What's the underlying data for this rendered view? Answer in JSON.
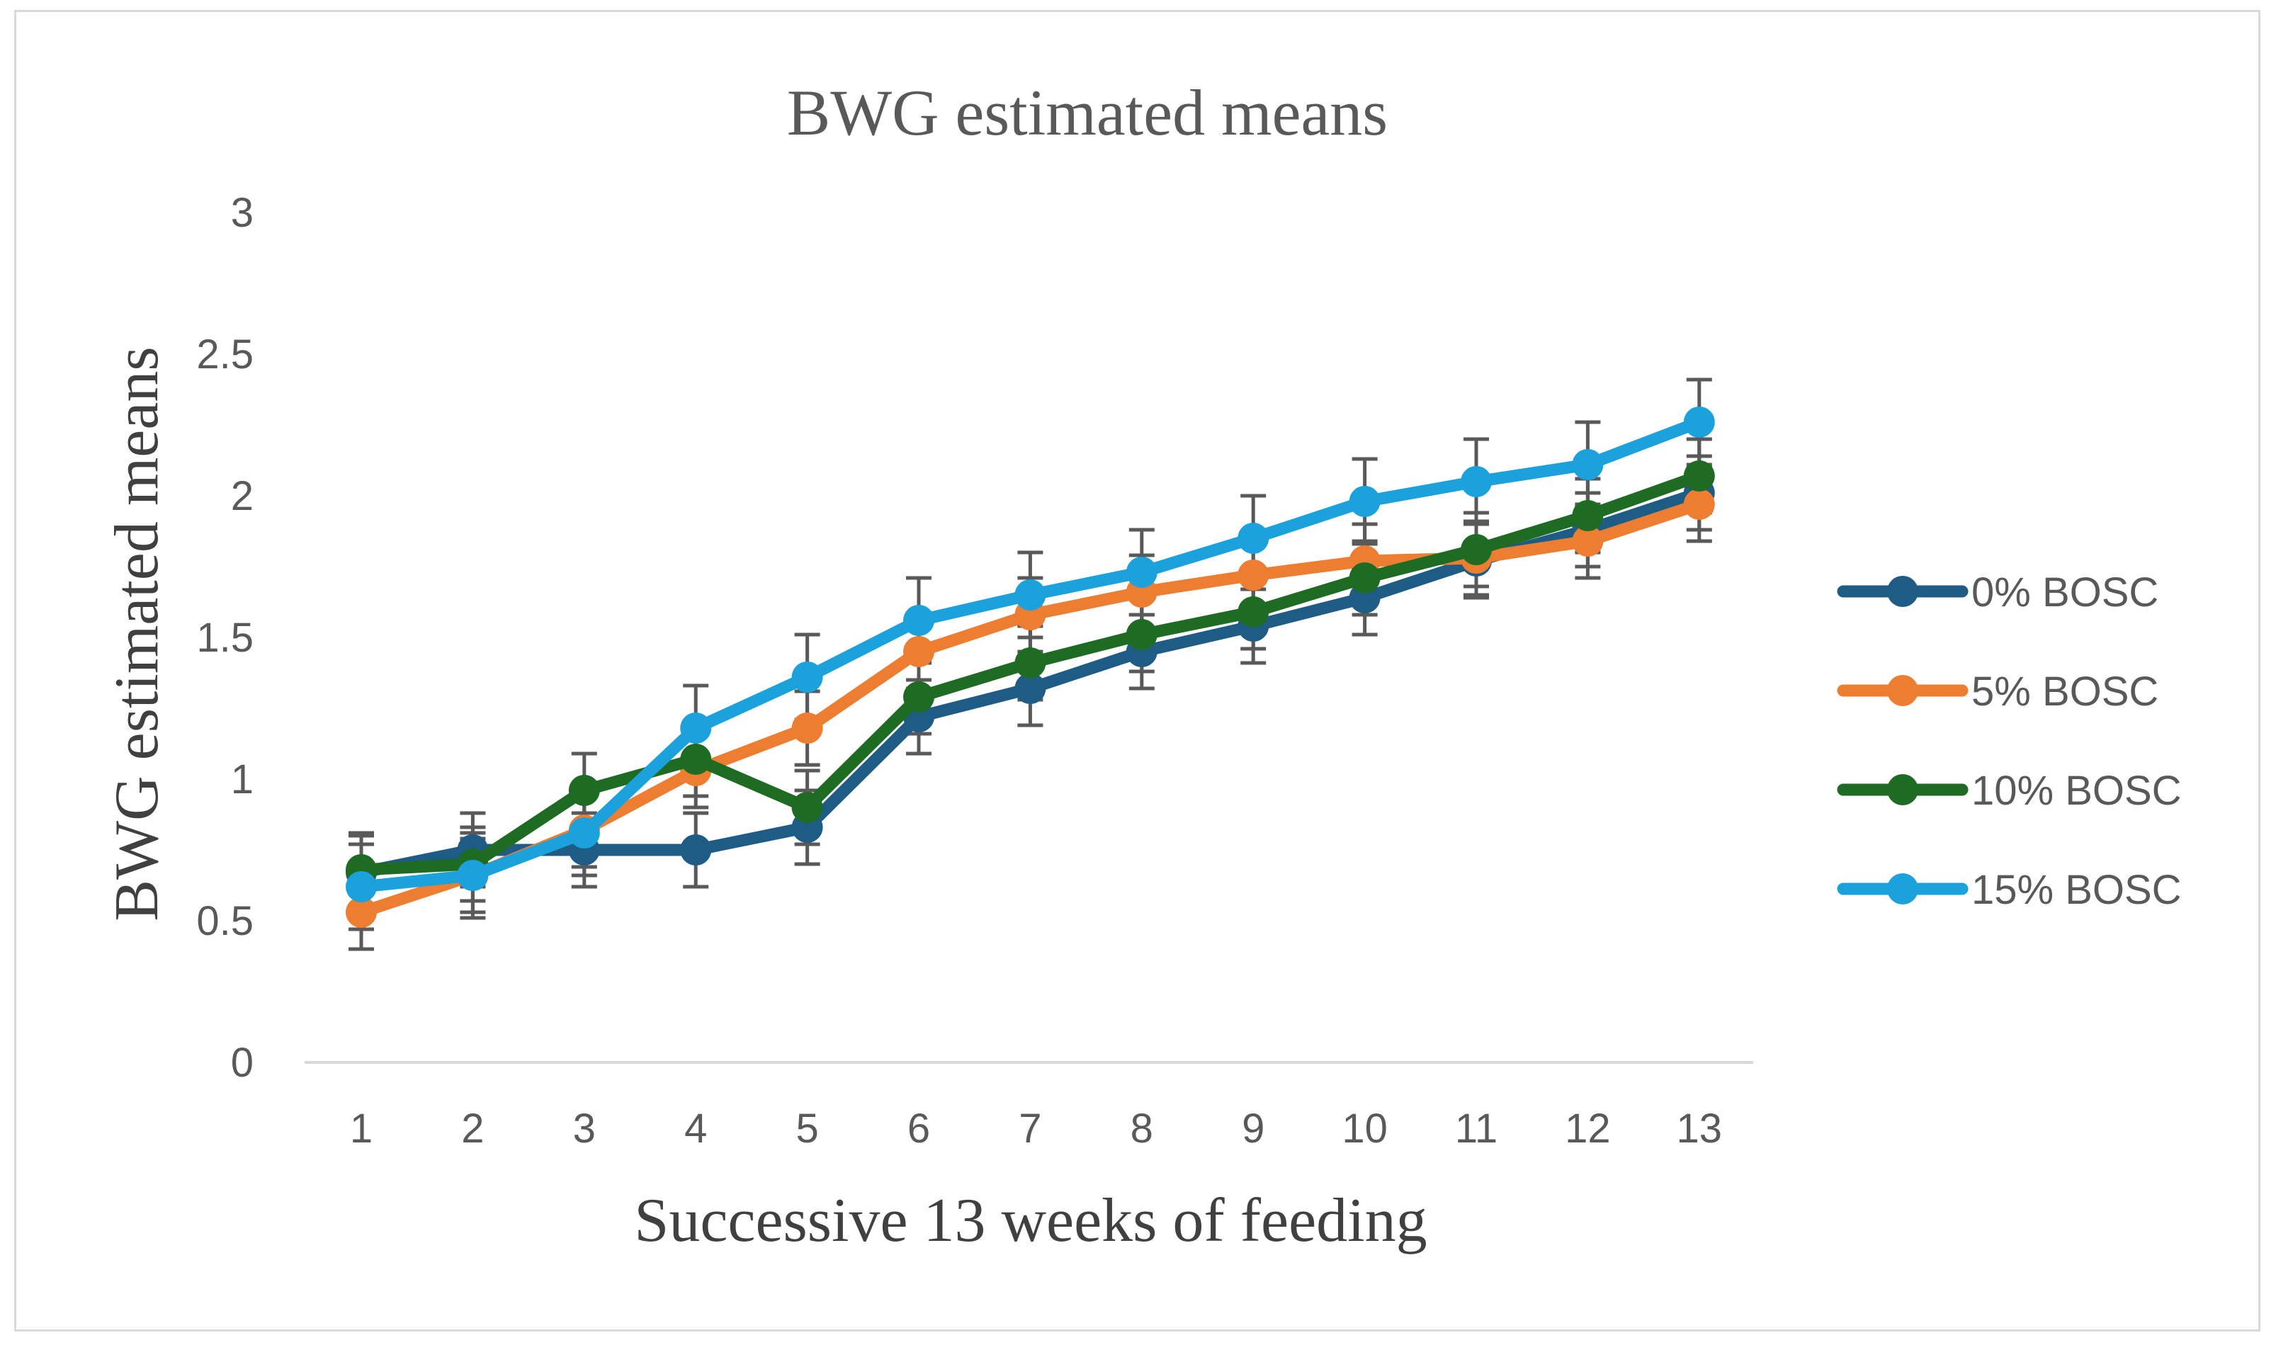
{
  "chart_data": {
    "type": "line",
    "title": "BWG estimated means",
    "xlabel": "Successive 13 weeks of feeding",
    "ylabel": "BWG estimated  means",
    "categories": [
      "1",
      "2",
      "3",
      "4",
      "5",
      "6",
      "7",
      "8",
      "9",
      "10",
      "11",
      "12",
      "13"
    ],
    "ylim": [
      0,
      3
    ],
    "yticks": [
      "0",
      "0.5",
      "1",
      "1.5",
      "2",
      "2.5",
      "3"
    ],
    "ytick_values": [
      0,
      0.5,
      1,
      1.5,
      2,
      2.5,
      3
    ],
    "grid": false,
    "legend_position": "right",
    "error_bar_color": "#595959",
    "series": [
      {
        "name": "0% BOSC",
        "color": "#1f5c85",
        "values": [
          0.67,
          0.75,
          0.75,
          0.75,
          0.83,
          1.22,
          1.32,
          1.45,
          1.54,
          1.64,
          1.77,
          1.88,
          2.01
        ],
        "errors": [
          0.13,
          0.13,
          0.13,
          0.13,
          0.13,
          0.13,
          0.13,
          0.13,
          0.13,
          0.13,
          0.13,
          0.13,
          0.13
        ]
      },
      {
        "name": "5% BOSC",
        "color": "#ed7d31",
        "values": [
          0.53,
          0.66,
          0.82,
          1.03,
          1.18,
          1.45,
          1.58,
          1.66,
          1.72,
          1.77,
          1.78,
          1.84,
          1.97
        ],
        "errors": [
          0.13,
          0.13,
          0.13,
          0.13,
          0.13,
          0.13,
          0.13,
          0.13,
          0.13,
          0.13,
          0.13,
          0.13,
          0.13
        ]
      },
      {
        "name": "10% BOSC",
        "color": "#1e6b24",
        "values": [
          0.68,
          0.7,
          0.96,
          1.07,
          0.9,
          1.29,
          1.41,
          1.51,
          1.59,
          1.71,
          1.81,
          1.93,
          2.07
        ],
        "errors": [
          0.13,
          0.13,
          0.13,
          0.13,
          0.13,
          0.13,
          0.13,
          0.13,
          0.13,
          0.13,
          0.13,
          0.13,
          0.13
        ]
      },
      {
        "name": "15% BOSC",
        "color": "#1ba1dc",
        "values": [
          0.62,
          0.66,
          0.81,
          1.18,
          1.36,
          1.56,
          1.65,
          1.73,
          1.85,
          1.98,
          2.05,
          2.11,
          2.26
        ],
        "errors": [
          0.15,
          0.15,
          0.15,
          0.15,
          0.15,
          0.15,
          0.15,
          0.15,
          0.15,
          0.15,
          0.15,
          0.15,
          0.15
        ]
      }
    ]
  }
}
